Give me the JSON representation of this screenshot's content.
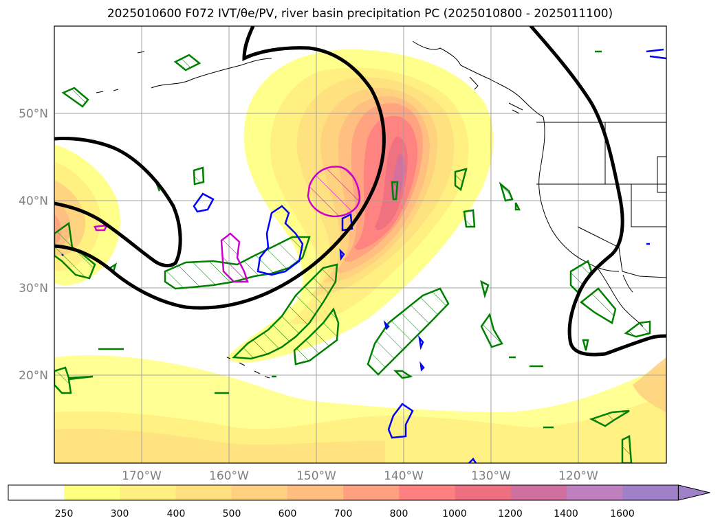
{
  "title": "2025010600 F072 IVT/θe/PV, river basin precipitation PC (2025010800 - 2025011100)",
  "map": {
    "lat_labels": [
      "50°N",
      "40°N",
      "30°N",
      "20°N"
    ],
    "lon_labels": [
      "170°W",
      "160°W",
      "150°W",
      "140°W",
      "130°W",
      "120°W"
    ]
  },
  "colorbar": {
    "levels": [
      "250",
      "300",
      "400",
      "500",
      "600",
      "700",
      "800",
      "1000",
      "1200",
      "1400",
      "1600"
    ],
    "colors": [
      "#ffffff",
      "#ffff80",
      "#ffee80",
      "#ffe080",
      "#ffd080",
      "#ffbd80",
      "#ffa080",
      "#ff8080",
      "#ee7080",
      "#d070a0",
      "#bf80bf",
      "#a080c8"
    ],
    "extend": "max"
  },
  "colors": {
    "pv_contour": "#008000",
    "theta_warm": "#cc00cc",
    "theta_cold": "#0000ff",
    "ivt_line": "#000000"
  }
}
